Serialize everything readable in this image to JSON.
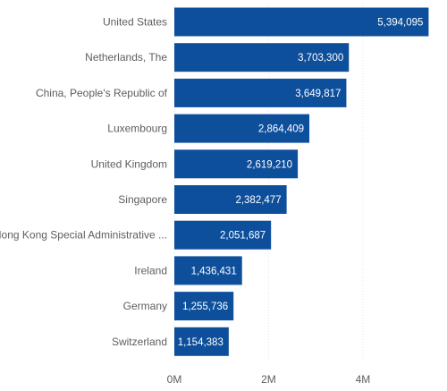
{
  "chart_data": {
    "type": "bar",
    "orientation": "horizontal",
    "categories": [
      "United States",
      "Netherlands, The",
      "China, People's Republic of",
      "Luxembourg",
      "United Kingdom",
      "Singapore",
      "Hong Kong Special Administrative ...",
      "Ireland",
      "Germany",
      "Switzerland"
    ],
    "values": [
      5394095,
      3703300,
      3649817,
      2864409,
      2619210,
      2382477,
      2051687,
      1436431,
      1255736,
      1154383
    ],
    "value_labels": [
      "5,394,095",
      "3,703,300",
      "3,649,817",
      "2,864,409",
      "2,619,210",
      "2,382,477",
      "2,051,687",
      "1,436,431",
      "1,255,736",
      "1,154,383"
    ],
    "x_ticks": [
      {
        "value": 0,
        "label": "0M"
      },
      {
        "value": 2000000,
        "label": "2M"
      },
      {
        "value": 4000000,
        "label": "4M"
      }
    ],
    "xlim": [
      0,
      5500000
    ],
    "bar_color": "#0e4f9c",
    "grid": true,
    "legend": "none"
  }
}
